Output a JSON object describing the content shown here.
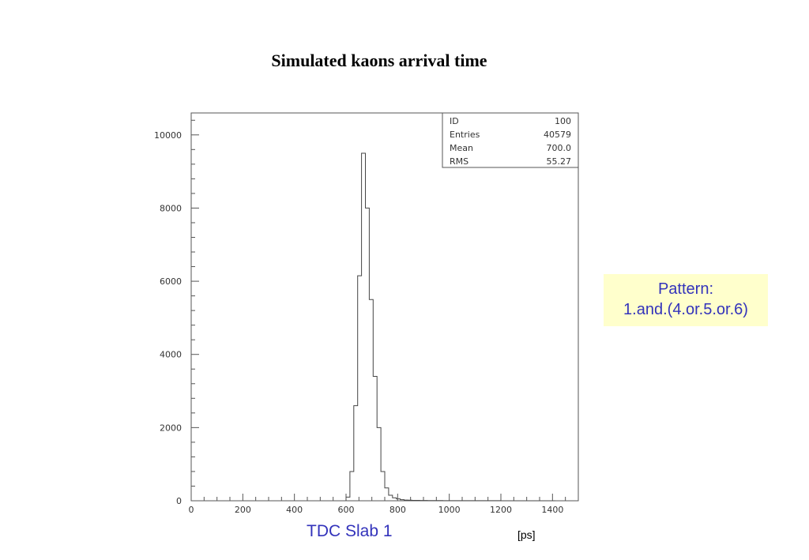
{
  "slide": {
    "title": "Simulated kaons arrival time",
    "pattern_line1": "Pattern:",
    "pattern_line2": "1.and.(4.or.5.or.6)",
    "colors": {
      "annotation_text": "#3333bb",
      "annotation_bg": "#ffffcc"
    }
  },
  "chart_data": {
    "type": "bar",
    "title": "Simulated kaons arrival time",
    "xlabel": "TDC Slab 1",
    "xunit": "[ps]",
    "ylabel": "",
    "xlim": [
      0,
      1500
    ],
    "ylim": [
      0,
      10600
    ],
    "x_ticks": [
      0,
      200,
      400,
      600,
      800,
      1000,
      1200,
      1400
    ],
    "y_ticks": [
      0,
      2000,
      4000,
      6000,
      8000,
      10000
    ],
    "bin_width": 15,
    "bin_edges_start": 600,
    "bin_values": [
      100,
      800,
      2600,
      6150,
      9500,
      8000,
      5500,
      3400,
      2000,
      800,
      350,
      150,
      80,
      50,
      30,
      20,
      15,
      12,
      10,
      8,
      8,
      6,
      5,
      5,
      5,
      4,
      4,
      3,
      3,
      3,
      3,
      2,
      2,
      2,
      2,
      2,
      2,
      2,
      2,
      2,
      1,
      1,
      1,
      1,
      1,
      1,
      1,
      1,
      1,
      1,
      1,
      1,
      1,
      1
    ],
    "stats": [
      {
        "label": "ID",
        "value": "100"
      },
      {
        "label": "Entries",
        "value": "40579"
      },
      {
        "label": "Mean",
        "value": "700.0"
      },
      {
        "label": "RMS",
        "value": "55.27"
      }
    ]
  }
}
